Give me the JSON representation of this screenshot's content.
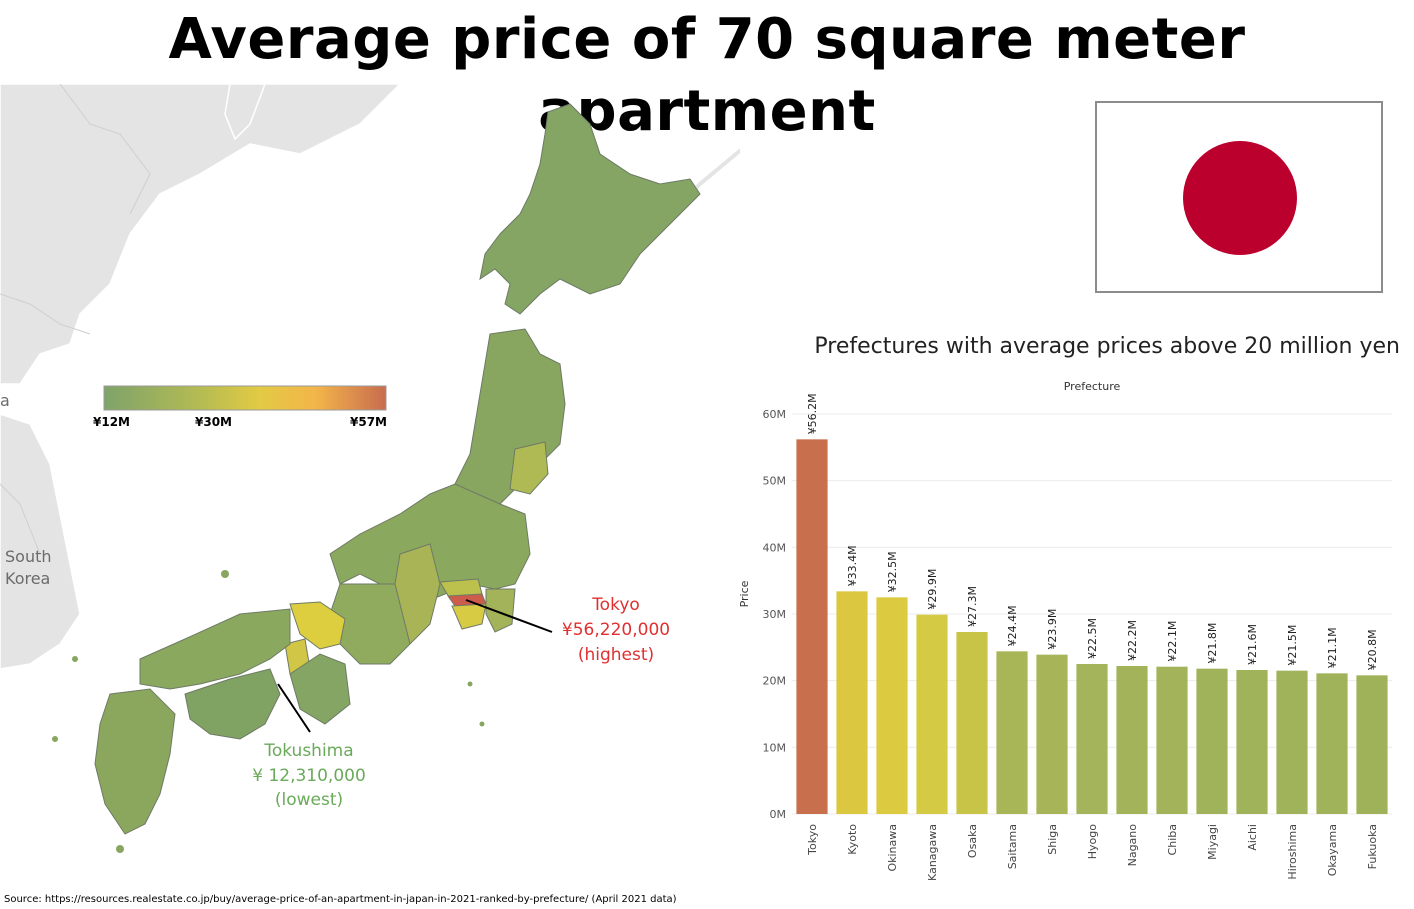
{
  "title": "Average price of 70 square meter apartment",
  "map": {
    "neighbor_labels": {
      "south_korea_1": "South",
      "south_korea_2": "Korea",
      "partial": "a"
    },
    "legend": {
      "min_label": "¥12M",
      "mid_label": "¥30M",
      "max_label": "¥57M",
      "colors": [
        "#7ea36a",
        "#d8cd48",
        "#f3b54a",
        "#c86c4e"
      ]
    },
    "callouts": {
      "highest": {
        "name": "Tokyo",
        "value": "¥56,220,000",
        "note": "(highest)",
        "color": "#e03030"
      },
      "lowest": {
        "name": "Tokushima",
        "value": "¥ 12,310,000",
        "note": "(lowest)",
        "color": "#6aaa5a"
      }
    },
    "region_colors": {
      "low": "#86a565",
      "midlow": "#9cb05a",
      "mid": "#c5c64a",
      "high": "#dcce3e",
      "top": "#cd5c4c",
      "sea_land": "#e3e3e3"
    }
  },
  "flag": {
    "name": "japan-flag",
    "disc_color": "#bc002d"
  },
  "chart_subtitle": "Prefectures with average prices above 20 million yen",
  "chart_data": {
    "type": "bar",
    "title": "Prefecture",
    "ylabel": "Price",
    "ylim": [
      0,
      60000000
    ],
    "yticks": [
      "0M",
      "10M",
      "20M",
      "30M",
      "40M",
      "50M",
      "60M"
    ],
    "categories": [
      "Tokyo",
      "Kyoto",
      "Okinawa",
      "Kanagawa",
      "Osaka",
      "Saitama",
      "Shiga",
      "Hyogo",
      "Nagano",
      "Chiba",
      "Miyagi",
      "Aichi",
      "Hiroshima",
      "Okayama",
      "Fukuoka"
    ],
    "values": [
      56200000,
      33400000,
      32500000,
      29900000,
      27300000,
      24400000,
      23900000,
      22500000,
      22200000,
      22100000,
      21800000,
      21600000,
      21500000,
      21100000,
      20800000
    ],
    "labels": [
      "¥56.2M",
      "¥33.4M",
      "¥32.5M",
      "¥29.9M",
      "¥27.3M",
      "¥24.4M",
      "¥23.9M",
      "¥22.5M",
      "¥22.2M",
      "¥22.1M",
      "¥21.8M",
      "¥21.6M",
      "¥21.5M",
      "¥21.1M",
      "¥20.8M"
    ],
    "colors": [
      "#c8704e",
      "#dcc840",
      "#dcca40",
      "#d4ca44",
      "#c8c448",
      "#a9b658",
      "#a7b558",
      "#a3b45a",
      "#a2b35a",
      "#a2b35a",
      "#a1b35a",
      "#a1b35a",
      "#a0b25a",
      "#a0b25a",
      "#9fb25a"
    ],
    "grid": true
  },
  "source": "Source: https://resources.realestate.co.jp/buy/average-price-of-an-apartment-in-japan-in-2021-ranked-by-prefecture/ (April 2021 data)"
}
